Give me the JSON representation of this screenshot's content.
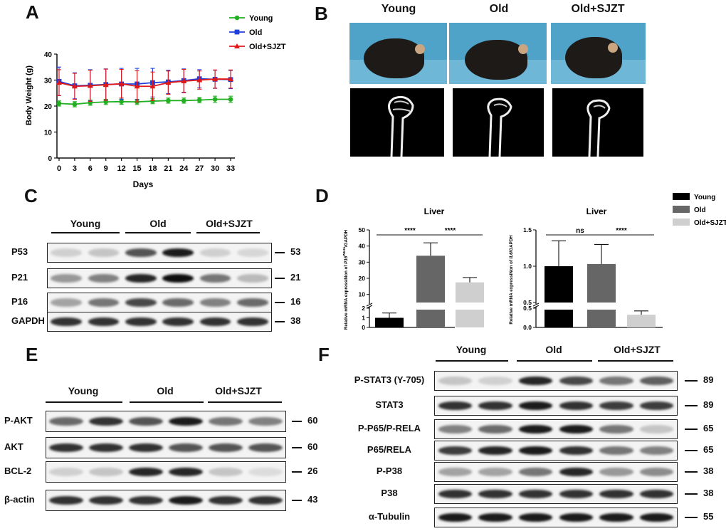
{
  "panels": {
    "A": "A",
    "B": "B",
    "C": "C",
    "D": "D",
    "E": "E",
    "F": "F"
  },
  "groups": {
    "young": "Young",
    "old": "Old",
    "sjzt": "Old+SJZT"
  },
  "colors": {
    "young": "#22b022",
    "old": "#1f3fdc",
    "sjzt": "#e01818",
    "bar_young": "#000000",
    "bar_old": "#666666",
    "bar_sjzt": "#cfcfcf"
  },
  "chart_data": [
    {
      "type": "line",
      "panel": "A",
      "xlabel": "Days",
      "ylabel": "Body Weight (g)",
      "ylim": [
        0,
        40
      ],
      "yticks": [
        "0",
        "10",
        "20",
        "30",
        "40"
      ],
      "x": [
        0,
        3,
        6,
        9,
        12,
        15,
        18,
        21,
        24,
        27,
        30,
        33
      ],
      "legend": "top-right",
      "series": [
        {
          "name": "Young",
          "color": "#22b022",
          "marker": "circle",
          "values": [
            21,
            20.7,
            21.3,
            21.6,
            21.7,
            21.6,
            21.9,
            22.1,
            22.1,
            22.3,
            22.6,
            22.6
          ],
          "errors": [
            1,
            1,
            1,
            1,
            1,
            1,
            1,
            1,
            1,
            1,
            1.2,
            1.2
          ]
        },
        {
          "name": "Old",
          "color": "#1f3fdc",
          "marker": "square",
          "values": [
            29.5,
            27.8,
            28,
            28.3,
            28.5,
            28.5,
            29,
            29.3,
            29.8,
            30.5,
            30.3,
            30.2
          ],
          "errors": [
            5.5,
            5,
            6,
            6,
            6,
            6,
            5.5,
            4.5,
            4.5,
            3.5,
            3.5,
            3.5
          ]
        },
        {
          "name": "Old+SJZT",
          "color": "#e01818",
          "marker": "triangle",
          "values": [
            29,
            27.6,
            27.8,
            28.2,
            28.6,
            27.6,
            27.6,
            29,
            29.6,
            30,
            30.4,
            30.4
          ],
          "errors": [
            5,
            5,
            6,
            6,
            5.5,
            6,
            5.5,
            4.5,
            4.5,
            3.5,
            3.5,
            3.5
          ]
        }
      ]
    },
    {
      "type": "bar",
      "panel": "D",
      "title": "Liver",
      "ylabel_pre": "Relative mRNA expressiNon of ",
      "ylabel_gene": "P16",
      "ylabel_sup": "INK4a",
      "ylabel_post": "/GAPDH",
      "yticks": [
        "0",
        "1",
        "2",
        "10",
        "20",
        "30",
        "40",
        "50"
      ],
      "categories": [
        "Young",
        "Old",
        "Old+SJZT"
      ],
      "values": [
        1,
        34,
        17.5
      ],
      "errors": [
        0.5,
        8,
        3
      ],
      "sig": [
        {
          "from": 0,
          "to": 1,
          "label": "****"
        },
        {
          "from": 1,
          "to": 2,
          "label": "****"
        }
      ]
    },
    {
      "type": "bar",
      "panel": "D",
      "title": "Liver",
      "ylabel_pre": "Relative mRNA expressiNon of ",
      "ylabel_gene": "IL6",
      "ylabel_post": "/GAPDH",
      "yticks": [
        "0.0",
        "0.5",
        "0.5",
        "1.0",
        "1.5"
      ],
      "categories": [
        "Young",
        "Old",
        "Old+SJZT"
      ],
      "values": [
        1.0,
        1.03,
        0.33
      ],
      "errors": [
        0.35,
        0.27,
        0.1
      ],
      "sig": [
        {
          "from": 0,
          "to": 1,
          "label": "ns"
        },
        {
          "from": 1,
          "to": 2,
          "label": "****"
        }
      ]
    }
  ],
  "legend_D": [
    "Young",
    "Old",
    "Old+SJZT"
  ],
  "blots": {
    "C": {
      "rows": [
        {
          "name": "P53",
          "mw": "53"
        },
        {
          "name": "P21",
          "mw": "21"
        },
        {
          "name": "P16",
          "mw": "16"
        },
        {
          "name": "GAPDH",
          "mw": "38"
        }
      ]
    },
    "E": {
      "rows": [
        {
          "name": "P-AKT",
          "mw": "60"
        },
        {
          "name": "AKT",
          "mw": "60"
        },
        {
          "name": "BCL-2",
          "mw": "26"
        },
        {
          "name": "β-actin",
          "mw": "43"
        }
      ]
    },
    "F": {
      "rows": [
        {
          "name": "P-STAT3 (Y-705)",
          "mw": "89"
        },
        {
          "name": "STAT3",
          "mw": "89"
        },
        {
          "name": "P-P65/P-RELA",
          "mw": "65"
        },
        {
          "name": "P65/RELA",
          "mw": "65"
        },
        {
          "name": "P-P38",
          "mw": "38"
        },
        {
          "name": "P38",
          "mw": "38"
        },
        {
          "name": "α-Tubulin",
          "mw": "55"
        }
      ]
    }
  }
}
